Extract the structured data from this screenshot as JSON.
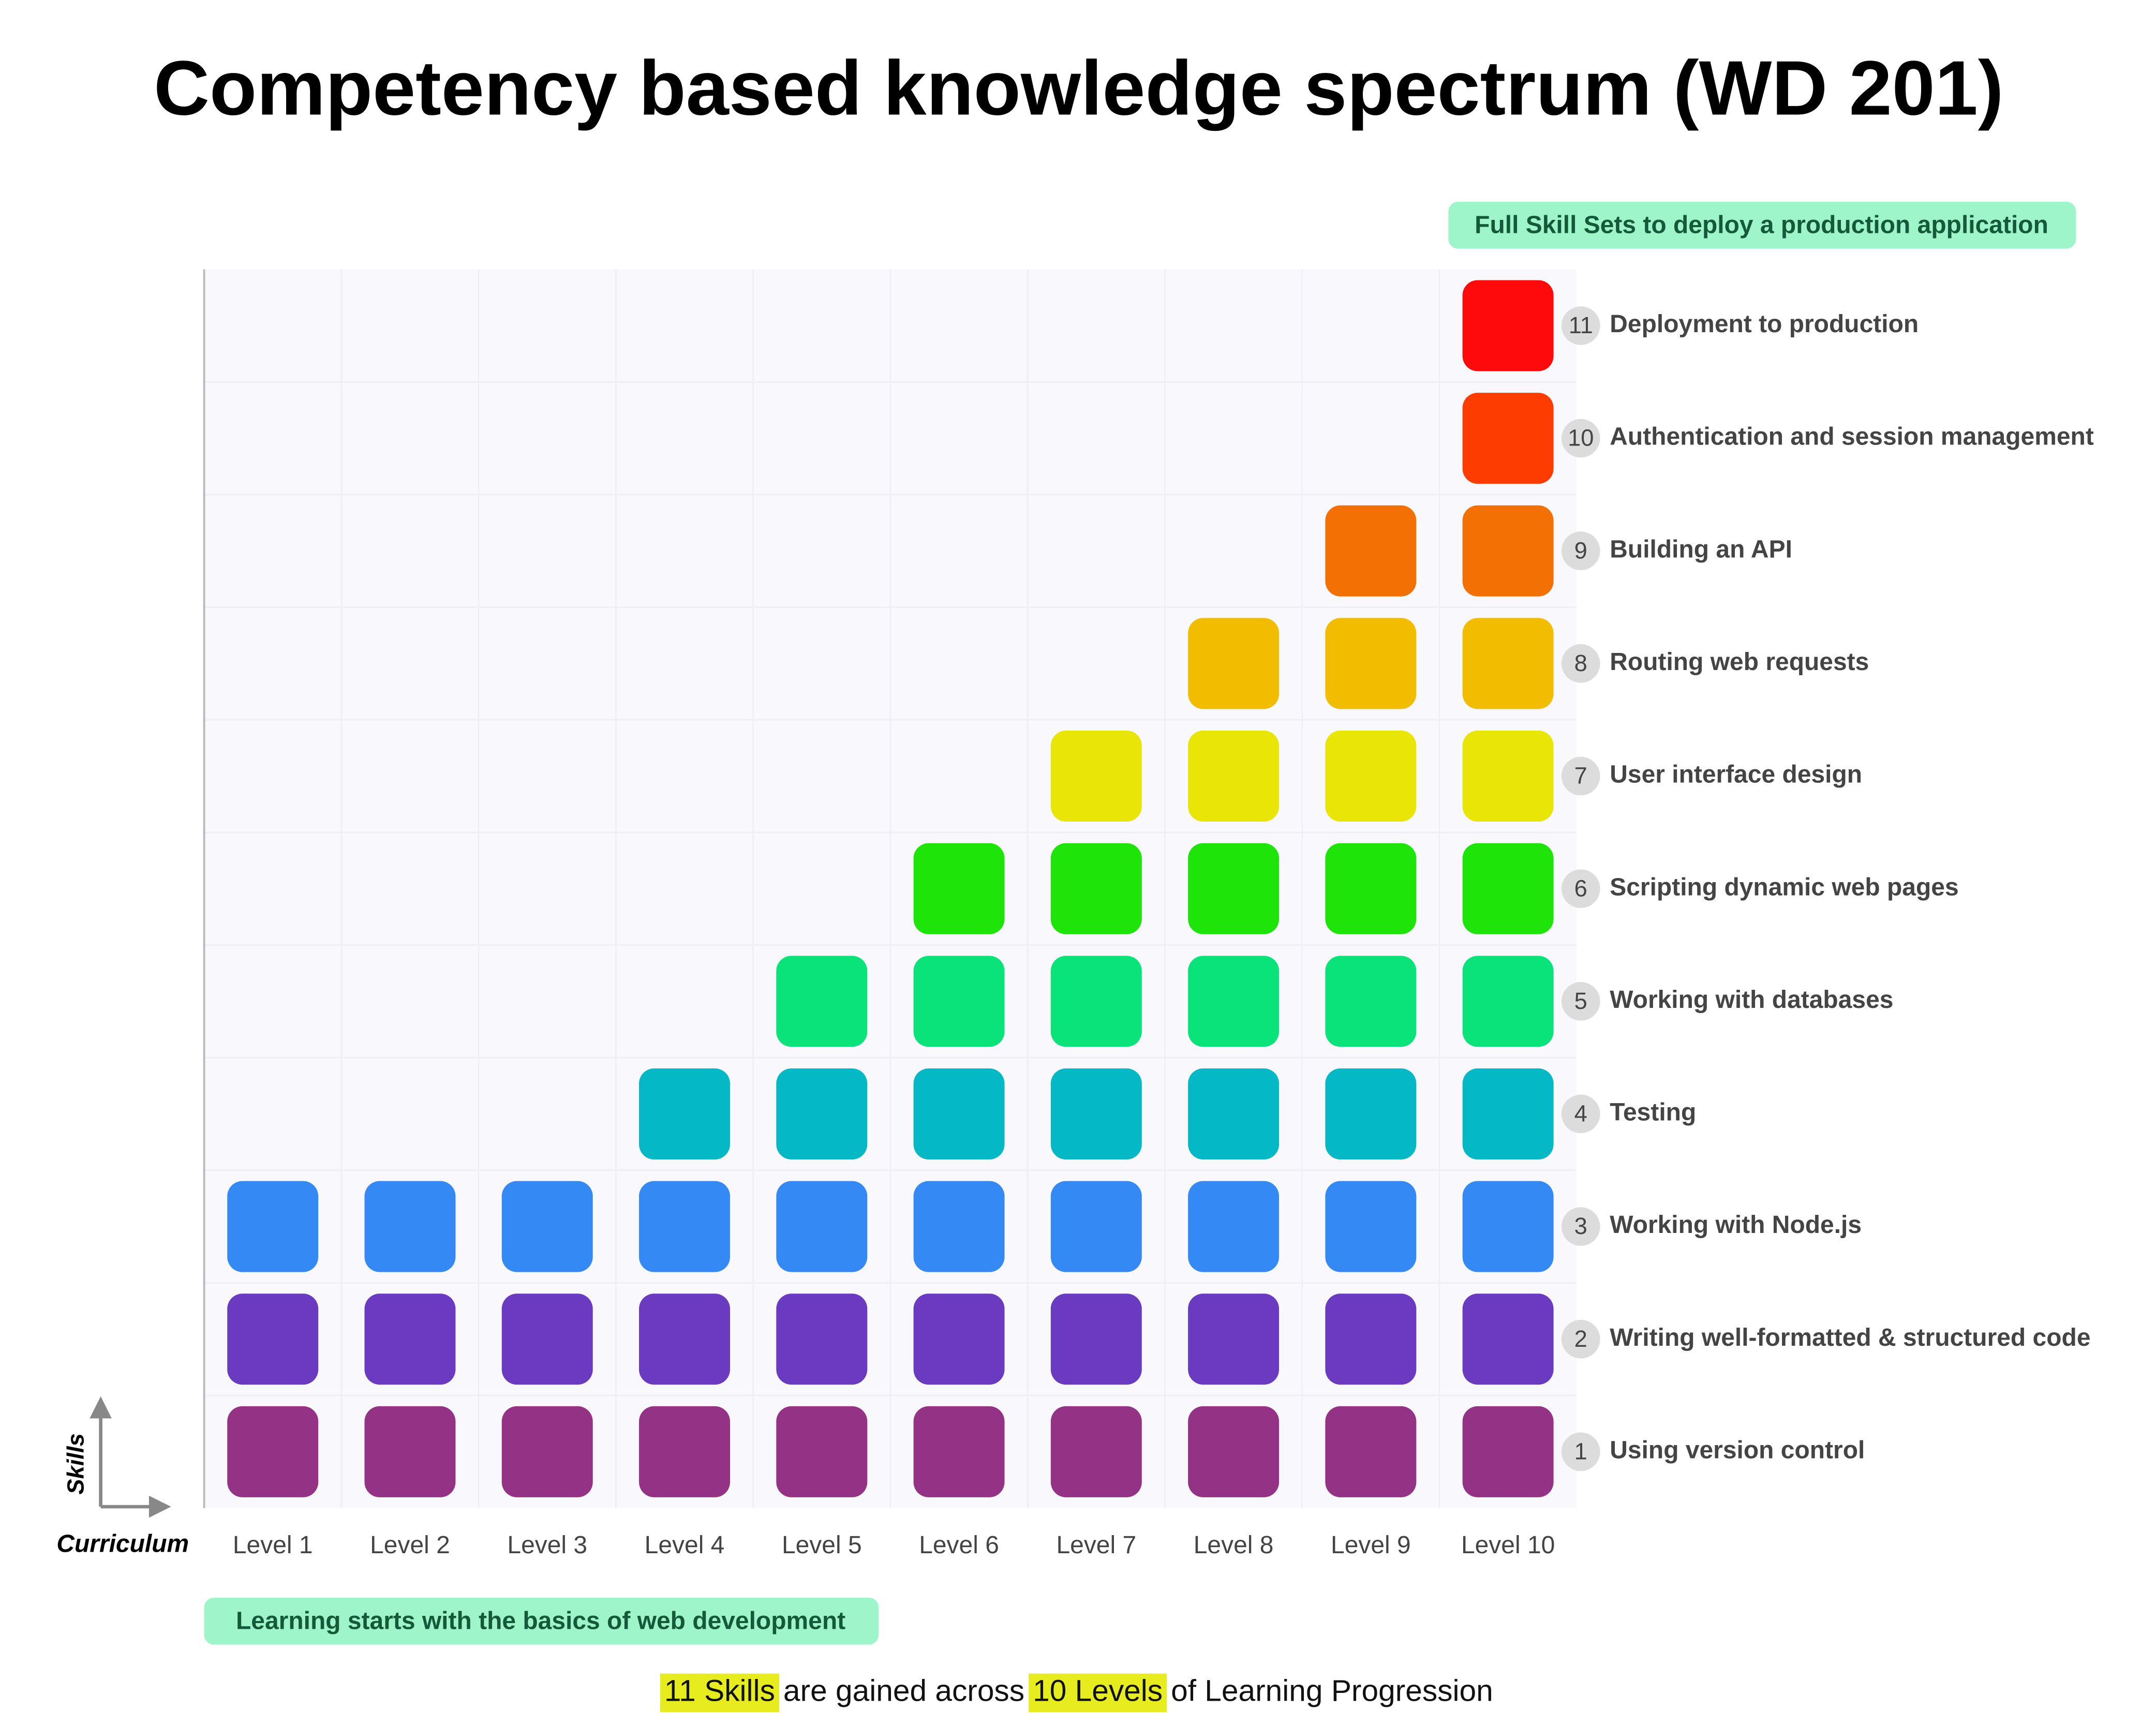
{
  "title": "Competency based knowledge spectrum (WD 201)",
  "top_note": "Full Skill Sets to deploy a production application",
  "bottom_note": "Learning starts with the basics of web development",
  "summary": {
    "highlight_1": "11 Skills",
    "text_1": "are gained across",
    "highlight_2": "10 Levels",
    "text_2": "of Learning Progression"
  },
  "axis": {
    "y": "Skills",
    "x": "Curriculum"
  },
  "levels": [
    "Level 1",
    "Level 2",
    "Level 3",
    "Level 4",
    "Level 5",
    "Level 6",
    "Level 7",
    "Level 8",
    "Level 9",
    "Level 10"
  ],
  "skills": [
    {
      "number": "1",
      "label": "Using version control",
      "first_level": 1,
      "color": "#943286"
    },
    {
      "number": "2",
      "label": "Writing well-formatted & structured code",
      "first_level": 1,
      "color": "#6a3bc0"
    },
    {
      "number": "3",
      "label": "Working with Node.js",
      "first_level": 1,
      "color": "#3589f5"
    },
    {
      "number": "4",
      "label": "Testing",
      "first_level": 4,
      "color": "#05b8c6"
    },
    {
      "number": "5",
      "label": "Working with databases",
      "first_level": 5,
      "color": "#0ae27a"
    },
    {
      "number": "6",
      "label": "Scripting dynamic web pages",
      "first_level": 6,
      "color": "#1ee40a"
    },
    {
      "number": "7",
      "label": "User interface design",
      "first_level": 7,
      "color": "#e9e507"
    },
    {
      "number": "8",
      "label": "Routing web requests",
      "first_level": 8,
      "color": "#f2bc00"
    },
    {
      "number": "9",
      "label": "Building an API",
      "first_level": 9,
      "color": "#f37104"
    },
    {
      "number": "10",
      "label": "Authentication and session management",
      "first_level": 10,
      "color": "#fc3c01"
    },
    {
      "number": "11",
      "label": "Deployment to production",
      "first_level": 10,
      "color": "#ff0a0a"
    }
  ]
}
